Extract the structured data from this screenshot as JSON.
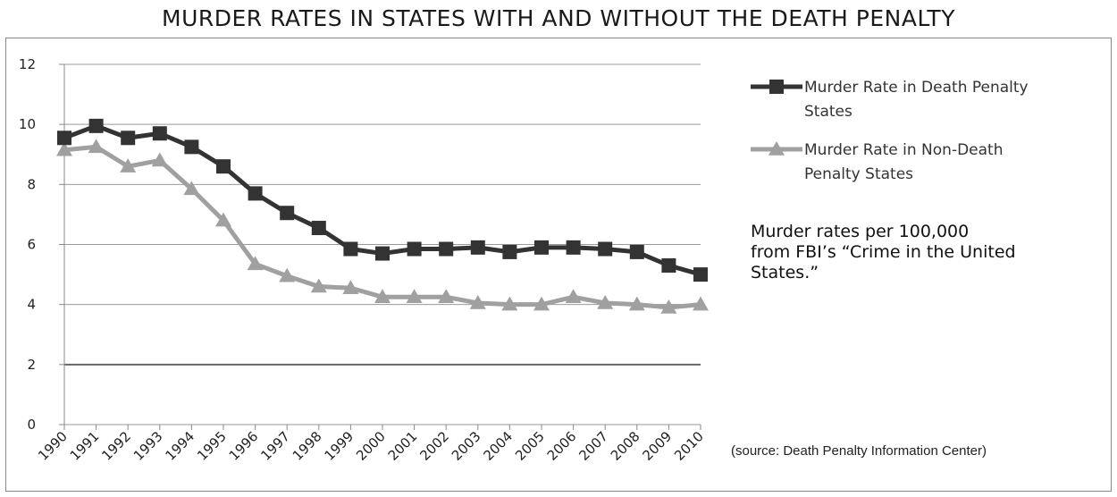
{
  "title": "MURDER RATES IN STATES WITH AND WITHOUT THE DEATH PENALTY",
  "note_line1": "Murder rates per 100,000",
  "note_line2": "from FBI’s “Crime in the United",
  "note_line3": "States.”",
  "source": "(source: Death Penalty Information Center)",
  "chart_data": {
    "type": "line",
    "title": "MURDER RATES IN STATES WITH AND WITHOUT THE DEATH PENALTY",
    "xlabel": "",
    "ylabel": "",
    "categories": [
      "1990",
      "1991",
      "1992",
      "1993",
      "1994",
      "1995",
      "1996",
      "1997",
      "1998",
      "1999",
      "2000",
      "2001",
      "2002",
      "2003",
      "2004",
      "2005",
      "2006",
      "2007",
      "2008",
      "2009",
      "2010"
    ],
    "yticks": [
      "0",
      "2",
      "4",
      "6",
      "8",
      "10",
      "12"
    ],
    "ylim": [
      0,
      12
    ],
    "grid": true,
    "legend_position": "right",
    "series": [
      {
        "name": "Murder Rate in Death Penalty States",
        "legend_line1": "Murder Rate in Death Penalty",
        "legend_line2": "States",
        "marker": "square",
        "color": "#333333",
        "values": [
          9.55,
          9.95,
          9.55,
          9.7,
          9.25,
          8.6,
          7.7,
          7.05,
          6.55,
          5.85,
          5.7,
          5.85,
          5.85,
          5.9,
          5.75,
          5.9,
          5.9,
          5.85,
          5.75,
          5.3,
          5.0
        ]
      },
      {
        "name": "Murder Rate in Non-Death Penalty States",
        "legend_line1": "Murder Rate in Non-Death",
        "legend_line2": "Penalty States",
        "marker": "triangle",
        "color": "#a0a0a0",
        "values": [
          9.15,
          9.25,
          8.6,
          8.8,
          7.85,
          6.8,
          5.35,
          4.95,
          4.6,
          4.55,
          4.25,
          4.25,
          4.25,
          4.05,
          4.0,
          4.0,
          4.25,
          4.05,
          4.0,
          3.9,
          4.0
        ]
      }
    ]
  }
}
